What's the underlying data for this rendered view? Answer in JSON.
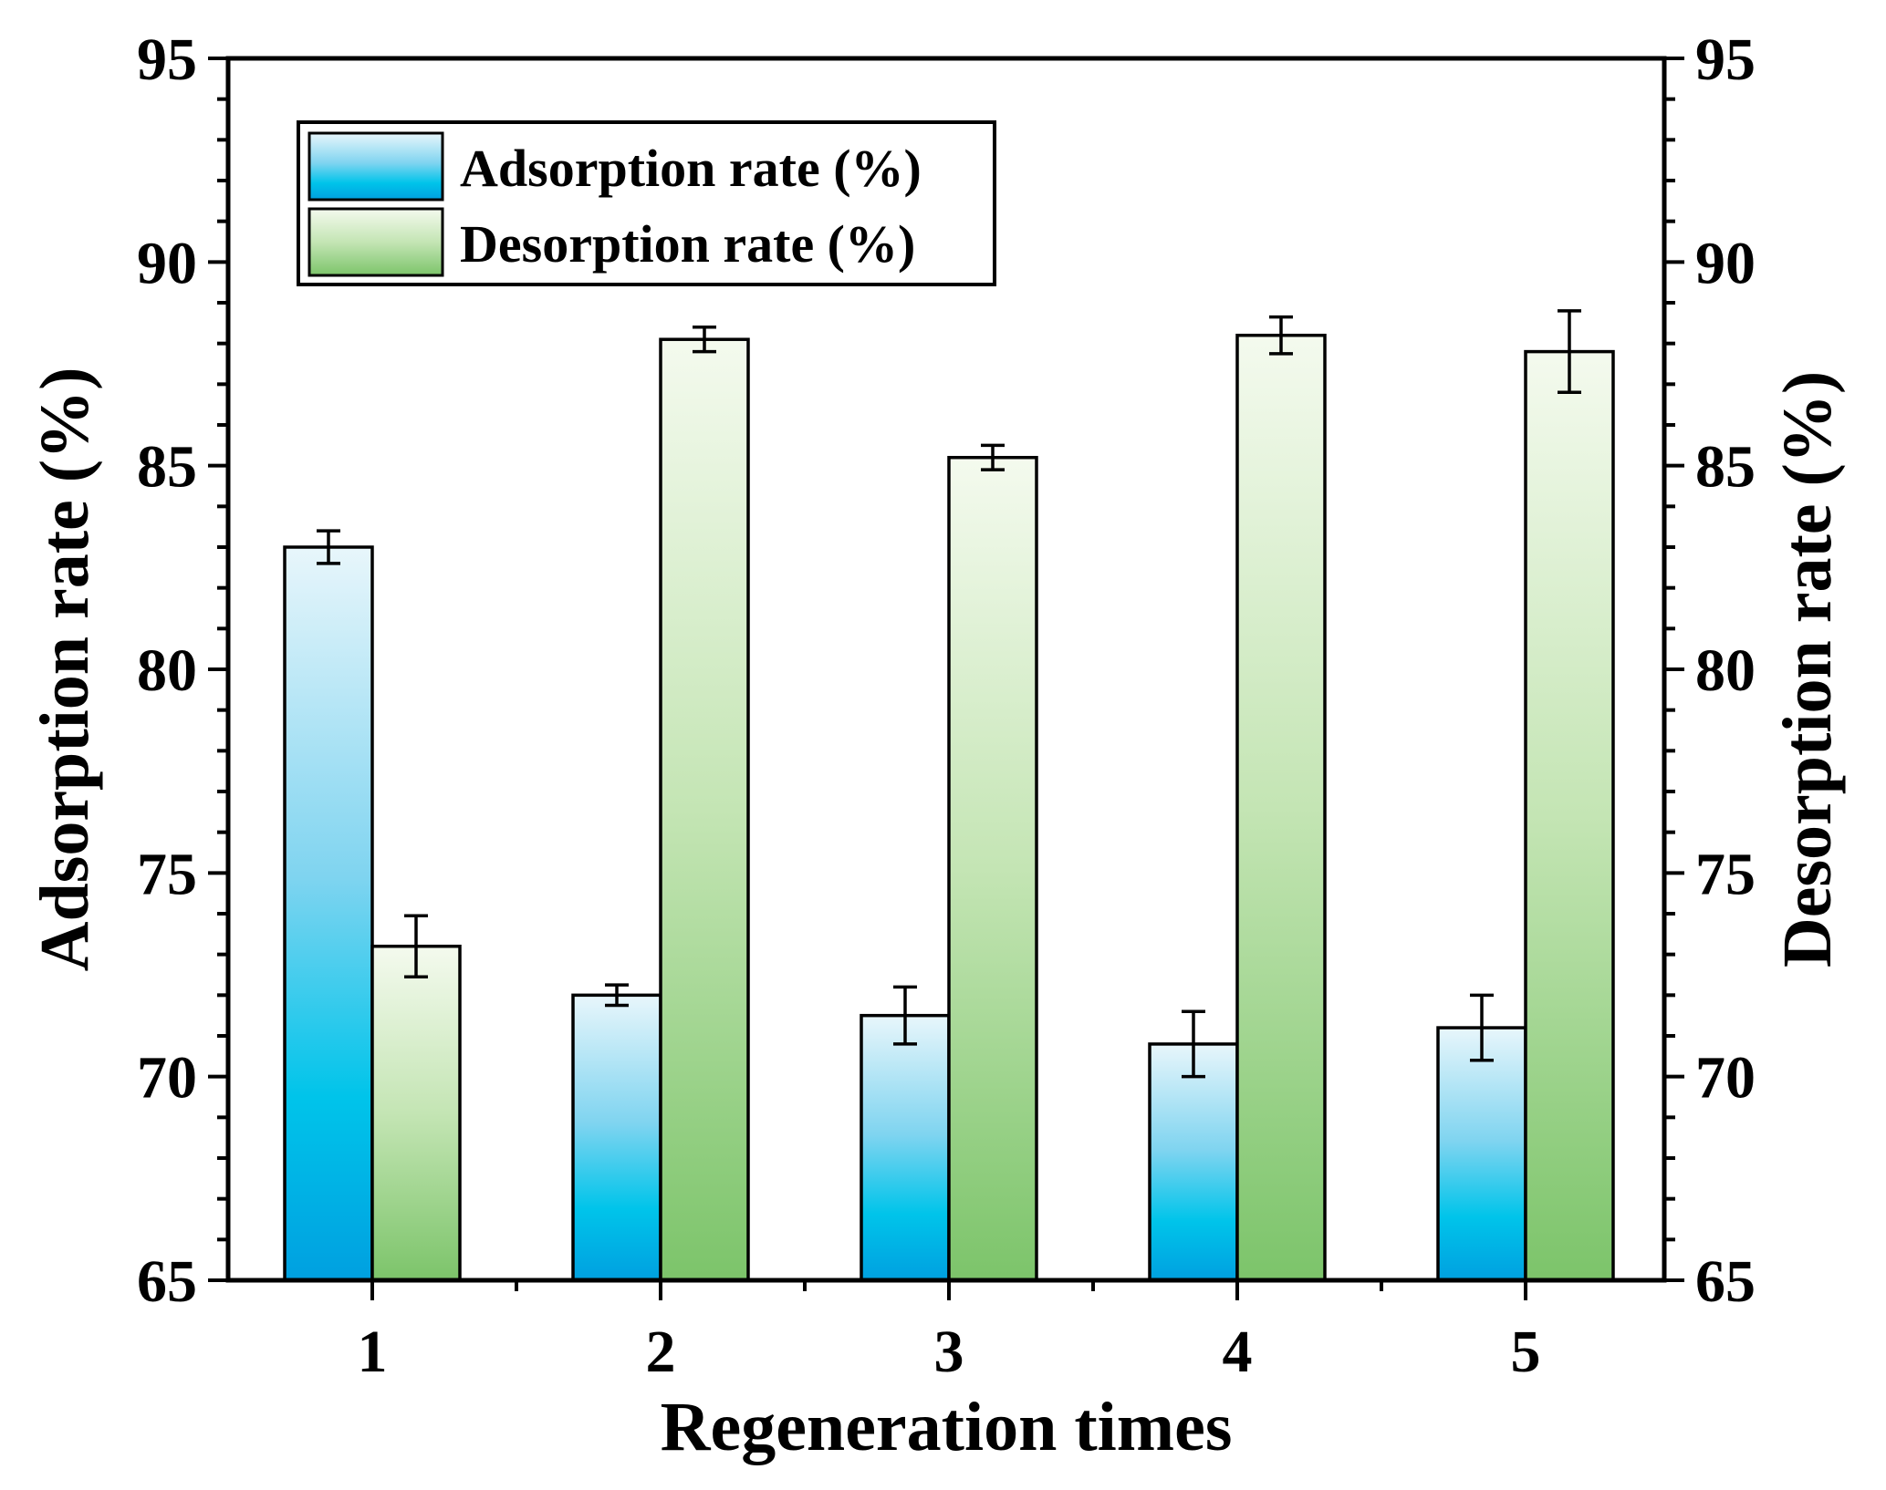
{
  "chart_data": {
    "type": "bar",
    "title": "",
    "xlabel": "Regeneration times",
    "ylabel": "Adsorption rate (%)",
    "y2label": "Desorption rate (%)",
    "categories": [
      "1",
      "2",
      "3",
      "4",
      "5"
    ],
    "ylim": [
      65,
      95
    ],
    "y2lim": [
      65,
      95
    ],
    "yticks": [
      "65",
      "70",
      "75",
      "80",
      "85",
      "90",
      "95"
    ],
    "y2ticks": [
      "65",
      "70",
      "75",
      "80",
      "85",
      "90",
      "95"
    ],
    "legend_position": "top-left",
    "series": [
      {
        "name": "Adsorption rate (%)",
        "axis": "left",
        "values": [
          83.0,
          72.0,
          71.5,
          70.8,
          71.2
        ],
        "errors": [
          0.4,
          0.25,
          0.7,
          0.8,
          0.8
        ],
        "color_top": "#e8f6fb",
        "color_bottom": "#00a0e0"
      },
      {
        "name": "Desorption rate (%)",
        "axis": "right",
        "values": [
          73.2,
          88.1,
          85.2,
          88.2,
          87.8
        ],
        "errors": [
          0.75,
          0.3,
          0.3,
          0.45,
          1.0
        ],
        "color_top": "#f4faee",
        "color_bottom": "#7cc46a"
      }
    ]
  }
}
